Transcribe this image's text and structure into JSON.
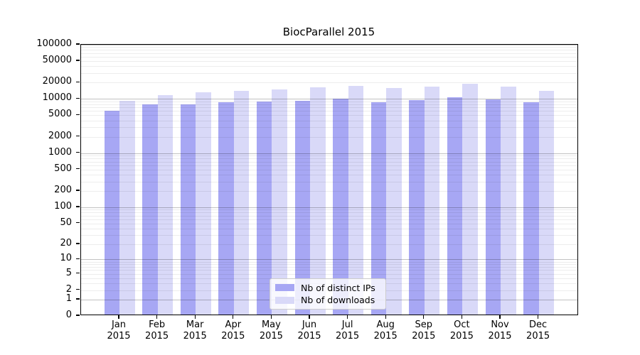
{
  "title": "BiocParallel 2015",
  "chart_data": {
    "type": "bar",
    "title": "BiocParallel 2015",
    "categories": [
      "Jan",
      "Feb",
      "Mar",
      "Apr",
      "May",
      "Jun",
      "Jul",
      "Aug",
      "Sep",
      "Oct",
      "Nov",
      "Dec"
    ],
    "year_label": "2015",
    "series": [
      {
        "name": "Nb of distinct IPs",
        "color": "#a7a7f4",
        "values": [
          5700,
          7500,
          7600,
          8100,
          8400,
          8600,
          9400,
          8300,
          9000,
          10000,
          9300,
          8100
        ]
      },
      {
        "name": "Nb of downloads",
        "color": "#d9d9f8",
        "values": [
          8800,
          11200,
          12500,
          13400,
          13900,
          15600,
          16200,
          14900,
          15700,
          18200,
          16000,
          13200
        ]
      }
    ],
    "xlabel": "",
    "ylabel": "",
    "y_ticks": [
      0,
      1,
      2,
      5,
      10,
      20,
      50,
      100,
      200,
      500,
      1000,
      2000,
      5000,
      10000,
      20000,
      50000,
      100000
    ],
    "ylim": [
      0,
      100000
    ],
    "scale": "log1p",
    "grid": true,
    "legend_position": "lower center"
  },
  "colors": {
    "major_gridline": "#c2c2c2",
    "minor_gridline": "#ececec",
    "axis": "#000000",
    "legend_border": "#cccccc"
  }
}
